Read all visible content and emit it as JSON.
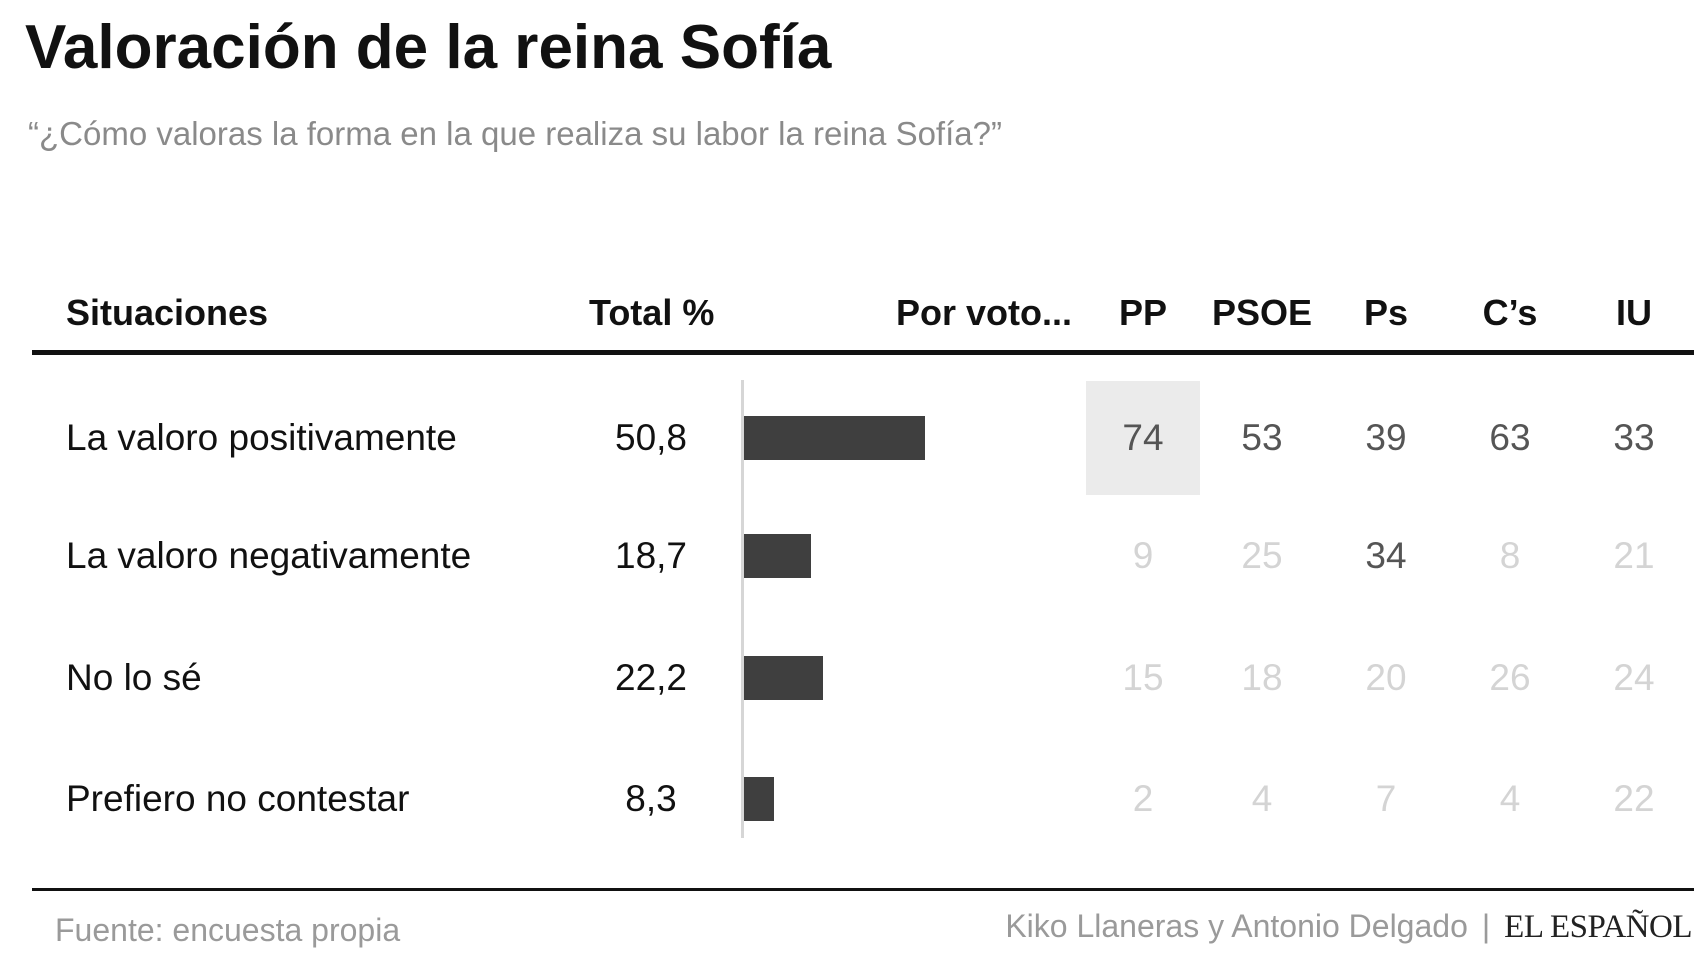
{
  "title": "Valoración de la reina Sofía",
  "subtitle": "“¿Cómo valoras la forma en la que realiza su labor la reina Sofía?”",
  "headers": {
    "situaciones": "Situaciones",
    "total": "Total %",
    "por_voto": "Por voto...",
    "parties": [
      "PP",
      "PSOE",
      "Ps",
      "C’s",
      "IU"
    ]
  },
  "chart_data": {
    "type": "table",
    "columns": [
      "Situaciones",
      "Total %",
      "PP",
      "PSOE",
      "Ps",
      "C’s",
      "IU"
    ],
    "rows": [
      {
        "label": "La valoro positivamente",
        "total": "50,8",
        "total_value": 50.8,
        "by_party": [
          "74",
          "53",
          "39",
          "63",
          "33"
        ],
        "emphasis": [
          true,
          true,
          true,
          true,
          true
        ],
        "highlight": [
          true,
          false,
          false,
          false,
          false
        ]
      },
      {
        "label": "La valoro negativamente",
        "total": "18,7",
        "total_value": 18.7,
        "by_party": [
          "9",
          "25",
          "34",
          "8",
          "21"
        ],
        "emphasis": [
          false,
          false,
          true,
          false,
          false
        ],
        "highlight": [
          false,
          false,
          false,
          false,
          false
        ]
      },
      {
        "label": "No lo sé",
        "total": "22,2",
        "total_value": 22.2,
        "by_party": [
          "15",
          "18",
          "20",
          "26",
          "24"
        ],
        "emphasis": [
          false,
          false,
          false,
          false,
          false
        ],
        "highlight": [
          false,
          false,
          false,
          false,
          false
        ]
      },
      {
        "label": "Prefiero no contestar",
        "total": "8,3",
        "total_value": 8.3,
        "by_party": [
          "2",
          "4",
          "7",
          "4",
          "22"
        ],
        "emphasis": [
          false,
          false,
          false,
          false,
          false
        ],
        "highlight": [
          false,
          false,
          false,
          false,
          false
        ]
      }
    ],
    "bar_series": "total_value",
    "bar_color": "#3f3f3f",
    "highlight_color": "#ebebeb",
    "emphasis_color": "#555555",
    "muted_color": "#d4d4d4"
  },
  "footer": {
    "source": "Fuente: encuesta propia",
    "credit": "Kiko Llaneras y Antonio Delgado",
    "separator": "|",
    "logo": "EL ESPAÑOL"
  }
}
